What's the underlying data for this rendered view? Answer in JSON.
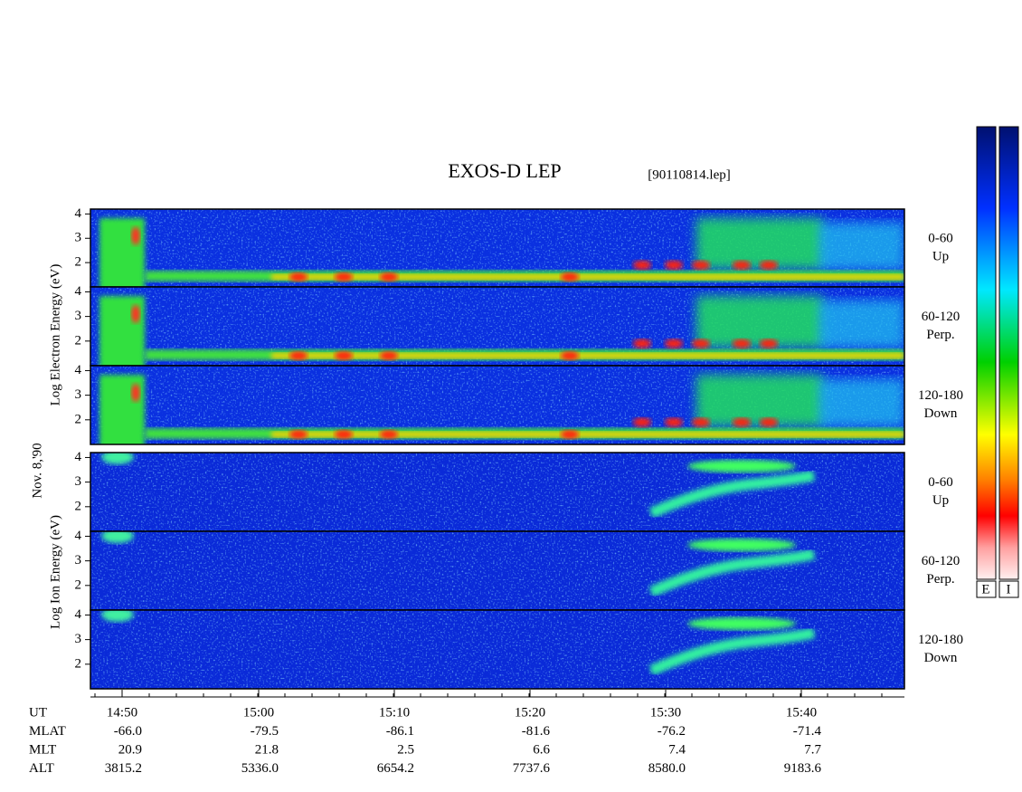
{
  "chart_data": {
    "type": "spectrogram",
    "title": "EXOS-D LEP",
    "subtitle": "[90110814.lep]",
    "date_label": "Nov. 8,'90",
    "electron_axis_label": "Log Electron Energy (eV)",
    "ion_axis_label": "Log Ion Energy (eV)",
    "ylim": [
      1,
      4.2
    ],
    "yticks": [
      2,
      3,
      4
    ],
    "electron_panels": [
      {
        "range": "0-60",
        "direction": "Up"
      },
      {
        "range": "60-120",
        "direction": "Perp."
      },
      {
        "range": "120-180",
        "direction": "Down"
      }
    ],
    "ion_panels": [
      {
        "range": "0-60",
        "direction": "Up"
      },
      {
        "range": "60-120",
        "direction": "Perp."
      },
      {
        "range": "120-180",
        "direction": "Down"
      }
    ],
    "colorbar_labels": [
      "E",
      "I"
    ],
    "ephemeris": [
      {
        "name": "UT",
        "values": [
          "14:50",
          "15:00",
          "15:10",
          "15:20",
          "15:30",
          "15:40"
        ]
      },
      {
        "name": "MLAT",
        "values": [
          "-66.0",
          "-79.5",
          "-86.1",
          "-81.6",
          "-76.2",
          "-71.4"
        ]
      },
      {
        "name": "MLT",
        "values": [
          "20.9",
          "21.8",
          "2.5",
          "6.6",
          "7.4",
          "7.7"
        ]
      },
      {
        "name": "ALT",
        "values": [
          "3815.2",
          "5336.0",
          "6654.2",
          "7737.6",
          "8580.0",
          "9183.6"
        ]
      }
    ]
  }
}
